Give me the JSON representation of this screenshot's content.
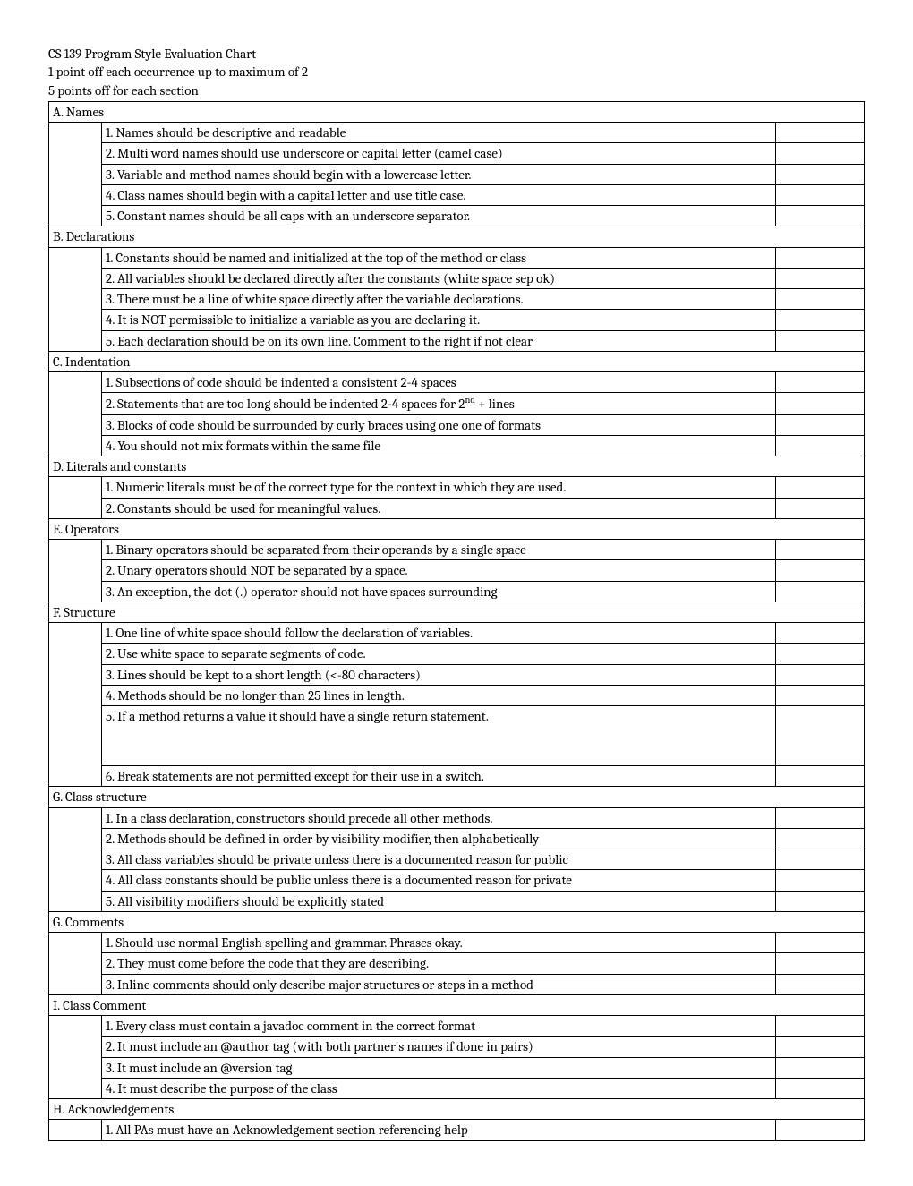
{
  "header": {
    "title": "CS 139 Program Style Evaluation Chart",
    "line2": "1 point off each occurrence up to maximum of 2",
    "line3": "5 points off for each section"
  },
  "sections": [
    {
      "label": "A. Names",
      "items": [
        "1. Names should be descriptive and readable",
        "2. Multi word names should use underscore or capital letter (camel case)",
        "3. Variable and method names should begin with a lowercase letter.",
        "4. Class names should begin with a capital letter and use title case.",
        "5. Constant names should be all caps with an underscore separator."
      ]
    },
    {
      "label": "B. Declarations",
      "items": [
        "1. Constants should be named and initialized at the top of the method or class",
        "2. All variables should be declared directly after the constants (white space sep ok)",
        "3. There must be a line of white space directly after the variable declarations.",
        "4. It is NOT permissible to initialize a variable as you are declaring it.",
        "5. Each declaration should be on its own line. Comment to the right if not clear"
      ]
    },
    {
      "label": "C. Indentation",
      "items": [
        "1. Subsections of code should be indented a consistent 2-4 spaces",
        "2. Statements that are too long should be indented 2-4 spaces for 2<sup>nd</sup> + lines",
        "3. Blocks of code should be surrounded by curly braces using one one of formats",
        "4. You should not mix formats within the same file"
      ]
    },
    {
      "label": "D. Literals and constants",
      "items": [
        "1. Numeric literals must be of the correct type for the context in which they are used.",
        "2. Constants should be used for meaningful values."
      ]
    },
    {
      "label": "E. Operators",
      "items": [
        "1. Binary operators should be separated from their operands by a single space",
        "2. Unary operators should NOT be separated by a space.",
        "3. An exception, the dot (.) operator should not have spaces surrounding"
      ]
    },
    {
      "label": "F. Structure",
      "items": [
        "1. One line of white space should follow the declaration of variables.",
        "2. Use white space to separate segments of code.",
        "3. Lines should be kept to a short length (<-80 characters)",
        "4. Methods should be no longer than 25 lines in length.",
        {
          "text": "5. If a method returns a value it should have a single return statement.",
          "tall": true
        },
        "6. Break statements are not permitted except for their use in a switch."
      ]
    },
    {
      "label": "G. Class structure",
      "items": [
        "1. In a class declaration, constructors should precede all other methods.",
        "2. Methods should be defined in order by visibility modifier, then alphabetically",
        "3. All class variables should be private unless there is a documented reason for public",
        "4. All class constants should be public unless there is a documented reason for private",
        "5. All visibility modifiers should be explicitly stated"
      ]
    },
    {
      "label": "G. Comments",
      "items": [
        "1. Should use normal English spelling and grammar. Phrases okay.",
        "2. They must come before the code that they are describing.",
        "3. Inline comments should only describe major structures or steps in a method"
      ]
    },
    {
      "label": "I. Class Comment",
      "items": [
        "1. Every class must contain a javadoc comment in the correct format",
        "2. It must include an @author tag (with both partner's names if done in pairs)",
        "3. It must include an @version tag",
        "4. It must describe the purpose of the class"
      ]
    },
    {
      "label": "H. Acknowledgements",
      "items": [
        "1. All PAs must have an Acknowledgement section referencing help"
      ]
    }
  ]
}
